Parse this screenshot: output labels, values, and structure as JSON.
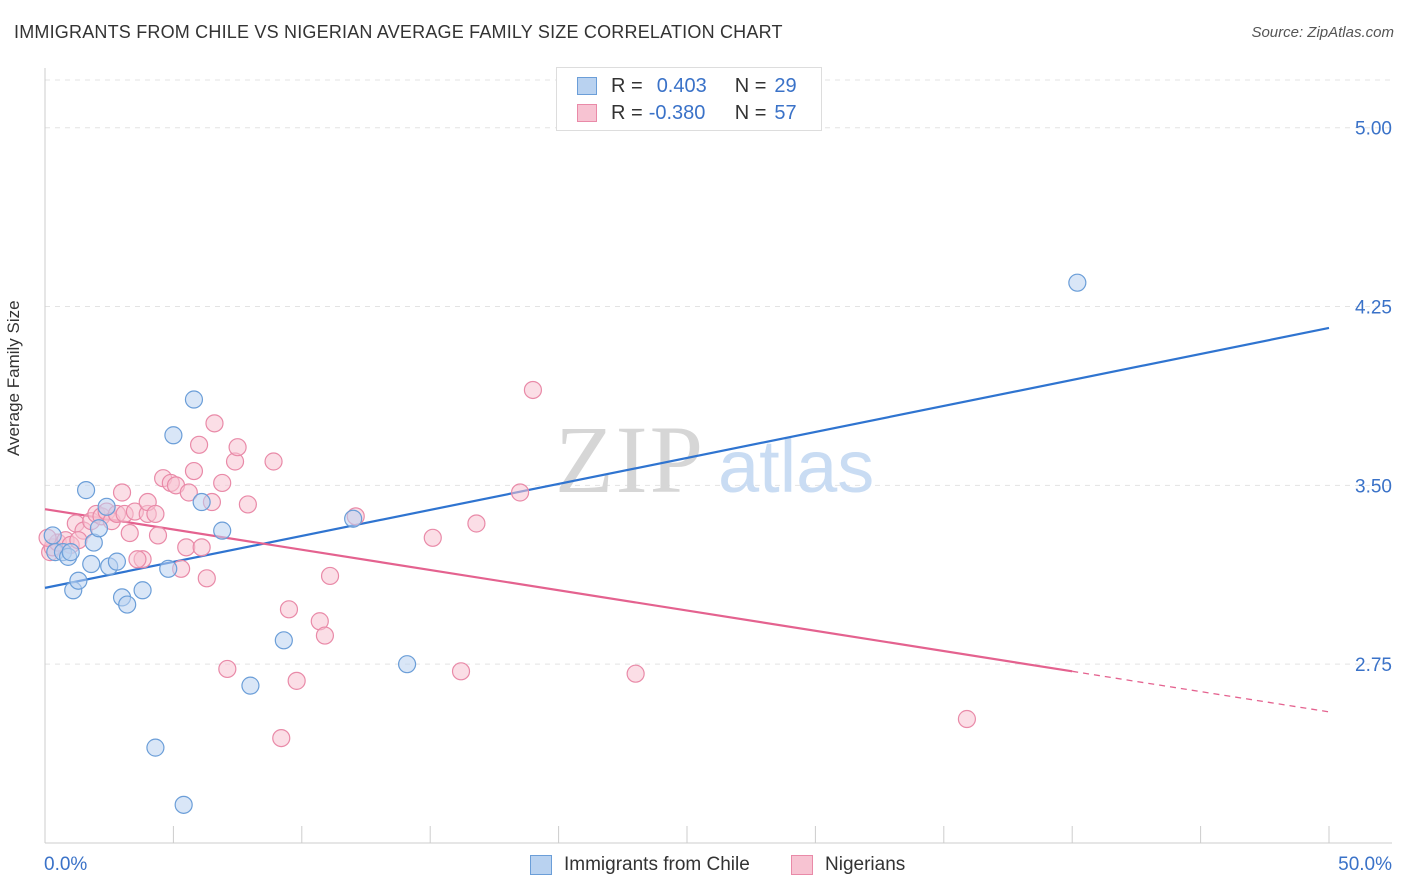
{
  "header": {
    "title": "IMMIGRANTS FROM CHILE VS NIGERIAN AVERAGE FAMILY SIZE CORRELATION CHART",
    "source": "Source: ZipAtlas.com"
  },
  "watermark": {
    "zip": "ZIP",
    "atlas": "atlas"
  },
  "legend": {
    "rows": [
      {
        "r_label": "R =",
        "r_value": "0.403",
        "n_label": "N =",
        "n_value": "29"
      },
      {
        "r_label": "R =",
        "r_value": "-0.380",
        "n_label": "N =",
        "n_value": "57"
      }
    ]
  },
  "colors": {
    "blue_fill": "#b9d2f0",
    "blue_stroke": "#6b9ed8",
    "blue_line": "#2f74d0",
    "pink_fill": "#f7c3d2",
    "pink_stroke": "#e98aa8",
    "pink_line": "#e4628f",
    "accent_text": "#3a72c8"
  },
  "chart_data": {
    "type": "scatter",
    "title": "IMMIGRANTS FROM CHILE VS NIGERIAN AVERAGE FAMILY SIZE CORRELATION CHART",
    "xlabel": "",
    "ylabel": "Average Family Size",
    "xlim": [
      0,
      50
    ],
    "ylim": [
      2.0,
      5.2
    ],
    "x_tick_labels": [
      "0.0%",
      "50.0%"
    ],
    "y_ticks": [
      2.75,
      3.5,
      4.25,
      5.0
    ],
    "y_tick_labels": [
      "2.75",
      "3.50",
      "4.25",
      "5.00"
    ],
    "grid": true,
    "legend_position": "top-center",
    "series": [
      {
        "name": "Immigrants from Chile",
        "color": "#6b9ed8",
        "points": [
          [
            0.3,
            3.29
          ],
          [
            0.4,
            3.22
          ],
          [
            0.7,
            3.22
          ],
          [
            0.9,
            3.2
          ],
          [
            1.0,
            3.22
          ],
          [
            1.1,
            3.06
          ],
          [
            1.3,
            3.1
          ],
          [
            1.6,
            3.48
          ],
          [
            1.8,
            3.17
          ],
          [
            1.9,
            3.26
          ],
          [
            2.1,
            3.32
          ],
          [
            2.4,
            3.41
          ],
          [
            2.5,
            3.16
          ],
          [
            2.8,
            3.18
          ],
          [
            3.0,
            3.03
          ],
          [
            3.2,
            3.0
          ],
          [
            3.8,
            3.06
          ],
          [
            4.3,
            2.4
          ],
          [
            4.8,
            3.15
          ],
          [
            5.0,
            3.71
          ],
          [
            5.4,
            2.16
          ],
          [
            5.8,
            3.86
          ],
          [
            6.1,
            3.43
          ],
          [
            6.9,
            3.31
          ],
          [
            8.0,
            2.66
          ],
          [
            9.3,
            2.85
          ],
          [
            12.0,
            3.36
          ],
          [
            14.1,
            2.75
          ],
          [
            40.2,
            4.35
          ]
        ],
        "trend": {
          "x": [
            0,
            50
          ],
          "y": [
            3.07,
            4.16
          ]
        }
      },
      {
        "name": "Nigerians",
        "color": "#e98aa8",
        "points": [
          [
            0.2,
            3.22
          ],
          [
            0.3,
            3.24
          ],
          [
            0.5,
            3.26
          ],
          [
            0.8,
            3.27
          ],
          [
            1.0,
            3.25
          ],
          [
            1.2,
            3.34
          ],
          [
            1.5,
            3.31
          ],
          [
            1.8,
            3.35
          ],
          [
            2.0,
            3.38
          ],
          [
            2.2,
            3.37
          ],
          [
            2.4,
            3.39
          ],
          [
            2.6,
            3.35
          ],
          [
            2.8,
            3.38
          ],
          [
            3.0,
            3.47
          ],
          [
            3.1,
            3.38
          ],
          [
            3.3,
            3.3
          ],
          [
            3.5,
            3.39
          ],
          [
            3.8,
            3.19
          ],
          [
            4.0,
            3.38
          ],
          [
            4.0,
            3.43
          ],
          [
            4.3,
            3.38
          ],
          [
            4.4,
            3.29
          ],
          [
            4.6,
            3.53
          ],
          [
            4.9,
            3.51
          ],
          [
            5.1,
            3.5
          ],
          [
            5.3,
            3.15
          ],
          [
            5.5,
            3.24
          ],
          [
            5.6,
            3.47
          ],
          [
            5.8,
            3.56
          ],
          [
            6.0,
            3.67
          ],
          [
            6.1,
            3.24
          ],
          [
            6.3,
            3.11
          ],
          [
            6.5,
            3.43
          ],
          [
            6.6,
            3.76
          ],
          [
            6.9,
            3.51
          ],
          [
            7.1,
            2.73
          ],
          [
            7.4,
            3.6
          ],
          [
            7.5,
            3.66
          ],
          [
            7.9,
            3.42
          ],
          [
            8.9,
            3.6
          ],
          [
            9.2,
            2.44
          ],
          [
            9.5,
            2.98
          ],
          [
            9.8,
            2.68
          ],
          [
            10.7,
            2.93
          ],
          [
            10.9,
            2.87
          ],
          [
            11.1,
            3.12
          ],
          [
            12.1,
            3.37
          ],
          [
            15.1,
            3.28
          ],
          [
            16.2,
            2.72
          ],
          [
            16.8,
            3.34
          ],
          [
            18.5,
            3.47
          ],
          [
            19.0,
            3.9
          ],
          [
            23.0,
            2.71
          ],
          [
            35.9,
            2.52
          ],
          [
            0.1,
            3.28
          ],
          [
            1.3,
            3.27
          ],
          [
            3.6,
            3.19
          ]
        ],
        "trend": {
          "x": [
            0,
            50
          ],
          "y": [
            3.4,
            2.55
          ],
          "solid_until_x": 40
        }
      }
    ]
  }
}
